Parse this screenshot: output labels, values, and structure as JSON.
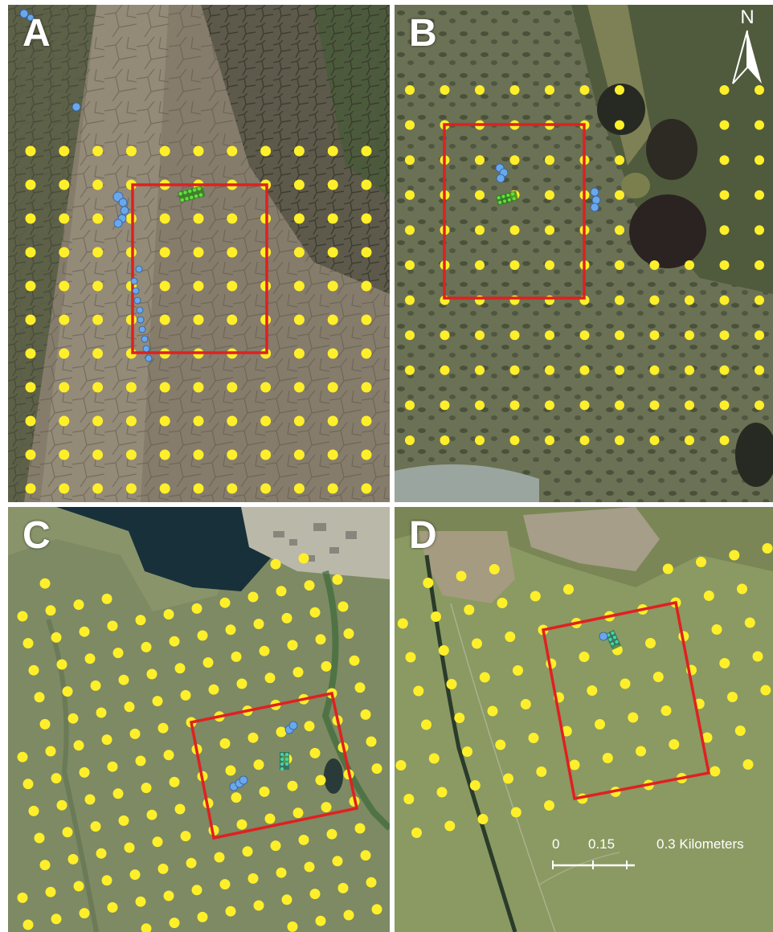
{
  "panels": [
    {
      "id": "a",
      "label": "A"
    },
    {
      "id": "b",
      "label": "B"
    },
    {
      "id": "c",
      "label": "C"
    },
    {
      "id": "d",
      "label": "D"
    }
  ],
  "north_arrow": {
    "label": "N"
  },
  "scale_bar": {
    "tick_0": "0",
    "tick_1": "0.15",
    "tick_2": "0.3 Kilometers"
  },
  "colors": {
    "sample_point": "#ffef2a",
    "study_boundary": "#e02020",
    "blue_marker": "#6aa8ea",
    "green_marker": "#3fcf2a",
    "teal_marker": "#3fd9b0"
  }
}
